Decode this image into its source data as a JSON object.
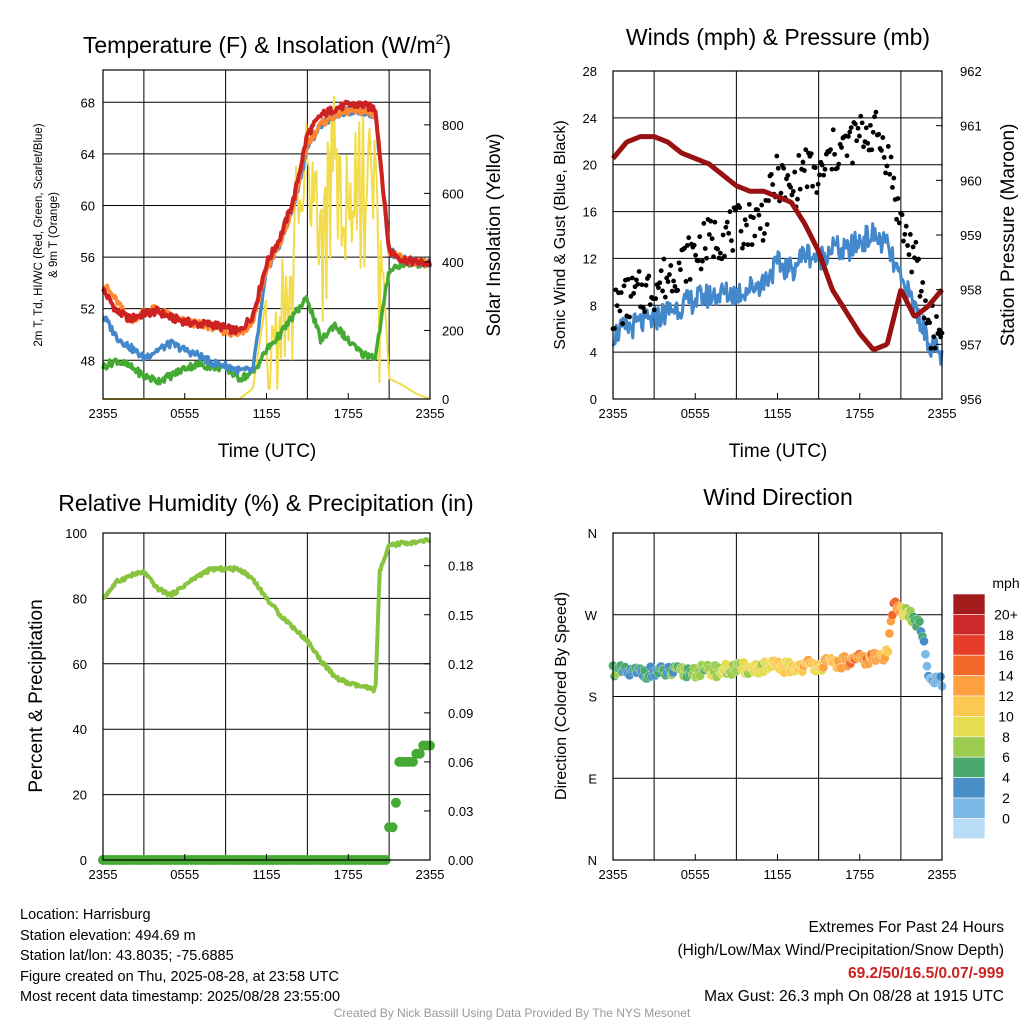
{
  "chart_data": [
    {
      "type": "line",
      "title": "Temperature (F) & Insolation (W/m2)",
      "title_main": "Temperature (F) & Insolation (W/m",
      "title_sup": "2",
      "title_end": ")",
      "xlabel": "Time (UTC)",
      "ylabel_lines": [
        "2m T, Td, HI/WC (Red, Green, Scarlet/Blue)",
        "& 9m T (Orange)"
      ],
      "ylabel2": "Solar Insolation (Yellow)",
      "x_ticks": [
        "2355",
        "0555",
        "1155",
        "1755",
        "2355"
      ],
      "y_ticks": [
        48,
        52,
        56,
        60,
        64,
        68
      ],
      "y2_ticks": [
        0,
        200,
        400,
        600,
        800
      ],
      "ylim": [
        45,
        70.5
      ],
      "y2lim": [
        0,
        960
      ],
      "colors": {
        "temp": "#cc2222",
        "dewpoint": "#44aa33",
        "windchill": "#4488cc",
        "temp9m": "#ff8833",
        "insolation": "#f2dc4a"
      },
      "series": [
        {
          "name": "2m T",
          "color": "#cc2222",
          "x": [
            0,
            1,
            2,
            3,
            4,
            5,
            6,
            7,
            8,
            9,
            10,
            11,
            12,
            13,
            14,
            15,
            16,
            17,
            18,
            19,
            20,
            21,
            22,
            23,
            24
          ],
          "values": [
            53.5,
            51.8,
            51.2,
            51.6,
            51.8,
            51.3,
            51.0,
            50.8,
            50.8,
            50.5,
            50.2,
            51.5,
            55.5,
            57.5,
            60.5,
            65.5,
            67.0,
            67.5,
            67.8,
            67.8,
            67.5,
            56.5,
            55.8,
            55.6,
            55.5
          ]
        },
        {
          "name": "9m T",
          "color": "#ff8833",
          "x": [
            0,
            1,
            2,
            3,
            4,
            5,
            6,
            7,
            8,
            9,
            10,
            11,
            12,
            13,
            14,
            15,
            16,
            17,
            18,
            19,
            20,
            21,
            22,
            23,
            24
          ],
          "values": [
            54.0,
            52.6,
            51.0,
            51.8,
            52.0,
            51.4,
            51.0,
            50.8,
            50.6,
            50.2,
            50.0,
            51.0,
            55.0,
            57.0,
            60.0,
            64.8,
            66.3,
            67.0,
            67.3,
            67.3,
            67.0,
            56.5,
            55.8,
            55.6,
            55.5
          ]
        },
        {
          "name": "HI/WC",
          "color": "#4488cc",
          "x": [
            0,
            1,
            2,
            3,
            4,
            5,
            6,
            7,
            8,
            9,
            10,
            11,
            12,
            13,
            14,
            15,
            16,
            17,
            18,
            19,
            20,
            21,
            22,
            23,
            24
          ],
          "values": [
            51.5,
            49.8,
            49.0,
            48.2,
            48.8,
            49.3,
            48.8,
            48.4,
            47.8,
            47.6,
            47.2,
            47.2,
            55.0,
            57.0,
            60.0,
            64.5,
            66.3,
            67.0,
            67.3,
            67.3,
            67.0,
            56.5,
            55.8,
            55.6,
            55.5
          ]
        },
        {
          "name": "Td",
          "color": "#44aa33",
          "x": [
            0,
            1,
            2,
            3,
            4,
            5,
            6,
            7,
            8,
            9,
            10,
            11,
            12,
            13,
            14,
            15,
            16,
            17,
            18,
            19,
            20,
            21,
            22,
            23,
            24
          ],
          "values": [
            47.5,
            48.0,
            47.5,
            46.8,
            46.4,
            46.8,
            47.4,
            47.7,
            47.5,
            47.4,
            46.6,
            47.0,
            48.8,
            50.0,
            51.5,
            52.8,
            49.5,
            50.8,
            49.5,
            48.5,
            48.3,
            55.0,
            55.5,
            55.5,
            55.5
          ]
        },
        {
          "name": "Solar Insolation",
          "color": "#f2dc4a",
          "x": [
            0,
            1,
            2,
            3,
            4,
            5,
            6,
            7,
            8,
            9,
            10,
            11,
            12,
            13,
            14,
            15,
            16,
            17,
            18,
            19,
            20,
            21,
            22,
            23,
            24
          ],
          "values": [
            0,
            0,
            0,
            0,
            0,
            0,
            0,
            0,
            0,
            0,
            0,
            30,
            300,
            480,
            650,
            880,
            650,
            900,
            700,
            850,
            780,
            60,
            40,
            15,
            0
          ]
        }
      ]
    },
    {
      "type": "line",
      "title": "Winds (mph) & Pressure (mb)",
      "xlabel": "Time (UTC)",
      "ylabel": "Sonic Wind & Gust (Blue, Black)",
      "ylabel2": "Station Pressure (Maroon)",
      "x_ticks": [
        "2355",
        "0555",
        "1155",
        "1755",
        "2355"
      ],
      "y_ticks": [
        0,
        4,
        8,
        12,
        16,
        20,
        24,
        28
      ],
      "y2_ticks": [
        956,
        957,
        958,
        959,
        960,
        961,
        962
      ],
      "ylim": [
        0,
        28
      ],
      "y2lim": [
        956,
        962
      ],
      "colors": {
        "wind": "#4488cc",
        "gust": "#000000",
        "pressure": "#991111"
      },
      "series": [
        {
          "name": "Sonic Wind",
          "color": "#4488cc",
          "x": [
            0,
            1,
            2,
            3,
            4,
            5,
            6,
            7,
            8,
            9,
            10,
            11,
            12,
            13,
            14,
            15,
            16,
            17,
            18,
            19,
            20,
            21,
            22,
            23,
            24
          ],
          "values": [
            5.5,
            6.0,
            6.5,
            6.8,
            7.5,
            8.0,
            8.5,
            8.8,
            9.0,
            9.0,
            9.5,
            10.0,
            11.5,
            11.0,
            12.5,
            12.0,
            13.0,
            12.5,
            13.5,
            14.0,
            13.0,
            10.0,
            8.0,
            5.0,
            3.5
          ]
        },
        {
          "name": "Gust",
          "color": "#000000",
          "x": [
            0,
            1,
            2,
            3,
            4,
            5,
            6,
            7,
            8,
            9,
            10,
            11,
            12,
            13,
            14,
            15,
            16,
            17,
            18,
            19,
            20,
            21,
            22,
            23,
            24
          ],
          "values": [
            7.5,
            8.5,
            9.0,
            9.5,
            10.5,
            11.5,
            12.5,
            13.5,
            14.0,
            14.5,
            15.0,
            15.5,
            19.0,
            17.5,
            20.0,
            18.5,
            21.0,
            21.5,
            22.5,
            23.0,
            21.0,
            15.0,
            12.0,
            6.5,
            5.5
          ]
        },
        {
          "name": "Station Pressure",
          "color": "#991111",
          "x": [
            0,
            1,
            2,
            3,
            4,
            5,
            6,
            7,
            8,
            9,
            10,
            11,
            12,
            13,
            14,
            15,
            16,
            17,
            18,
            19,
            20,
            21,
            22,
            23,
            24
          ],
          "values": [
            960.4,
            960.7,
            960.8,
            960.8,
            960.7,
            960.5,
            960.4,
            960.3,
            960.1,
            959.9,
            959.8,
            959.8,
            959.7,
            959.6,
            959.2,
            958.7,
            958.0,
            957.6,
            957.2,
            956.9,
            957.0,
            958.0,
            957.5,
            957.7,
            958.0
          ]
        }
      ]
    },
    {
      "type": "line",
      "title": "Relative Humidity (%) & Precipitation (in)",
      "xlabel": "",
      "ylabel": "Percent & Precipitation",
      "x_ticks": [
        "2355",
        "0555",
        "1155",
        "1755",
        "2355"
      ],
      "y_ticks": [
        0,
        20,
        40,
        60,
        80,
        100
      ],
      "y2_ticks": [
        "0.00",
        "0.03",
        "0.06",
        "0.09",
        "0.12",
        "0.15",
        "0.18"
      ],
      "ylim": [
        0,
        100
      ],
      "y2lim": [
        0,
        0.2
      ],
      "colors": {
        "rh": "#88c440",
        "precip": "#44aa33"
      },
      "series": [
        {
          "name": "Relative Humidity",
          "color": "#88c440",
          "x": [
            0,
            1,
            2,
            3,
            4,
            5,
            6,
            7,
            8,
            9,
            10,
            11,
            12,
            13,
            14,
            15,
            16,
            17,
            18,
            19,
            20,
            20.3,
            21,
            22,
            23,
            24
          ],
          "values": [
            80,
            85,
            87,
            88,
            83,
            81,
            84,
            87,
            89,
            89,
            89,
            86,
            80,
            75,
            71,
            67,
            61,
            56,
            54,
            53,
            52,
            88,
            96,
            97,
            97,
            98
          ]
        },
        {
          "name": "Precipitation",
          "color": "#44aa33",
          "x": [
            0,
            4,
            8,
            12,
            16,
            19,
            20.5,
            21,
            21.3,
            21.6,
            22,
            23,
            24
          ],
          "values": [
            0,
            0,
            0,
            0,
            0,
            0,
            0,
            0.02,
            0.035,
            0.06,
            0.06,
            0.065,
            0.07
          ]
        }
      ]
    },
    {
      "type": "scatter",
      "title": "Wind Direction",
      "xlabel": "",
      "ylabel": "Direction (Colored By Speed)",
      "x_ticks": [
        "2355",
        "0555",
        "1155",
        "1755",
        "2355"
      ],
      "y_ticks": [
        "N",
        "E",
        "S",
        "W",
        "N"
      ],
      "ylim": [
        0,
        360
      ],
      "colorbar_unit": "mph",
      "colorbar_labels": [
        "20+",
        "18",
        "16",
        "14",
        "12",
        "10",
        "8",
        "6",
        "4",
        "2",
        "0"
      ],
      "colorbar_colors": [
        "#a31b1b",
        "#cc2a2a",
        "#e63c2a",
        "#f2682a",
        "#fca040",
        "#fbc850",
        "#e6dc50",
        "#9ccc50",
        "#4aaa6e",
        "#4a8ec8",
        "#7ab8e6",
        "#b8ddf5"
      ],
      "series": [
        {
          "name": "Direction",
          "x": [
            0,
            1,
            2,
            3,
            4,
            5,
            6,
            7,
            8,
            9,
            10,
            11,
            12,
            13,
            14,
            15,
            16,
            17,
            18,
            19,
            20,
            20.5,
            21,
            22,
            22.5,
            23,
            24
          ],
          "values": [
            210,
            205,
            207,
            206,
            207,
            206,
            208,
            208,
            209,
            210,
            211,
            212,
            213,
            212,
            214,
            215,
            216,
            218,
            220,
            222,
            225,
            290,
            275,
            265,
            255,
            200,
            195
          ],
          "speed": [
            6,
            6,
            5,
            5,
            6,
            7,
            7,
            8,
            9,
            9,
            10,
            10,
            11,
            11,
            12,
            12,
            13,
            14,
            15,
            14,
            13,
            16,
            12,
            6,
            4,
            3,
            3
          ]
        }
      ]
    }
  ],
  "info": {
    "location": "Location: Harrisburg",
    "elevation": "Station elevation: 494.69 m",
    "latlon": "Station lat/lon: 43.8035; -75.6885",
    "created": "Figure created on Thu, 2025-08-28, at 23:58 UTC",
    "recent": "Most recent data timestamp: 2025/08/28 23:55:00"
  },
  "extremes": {
    "heading": "Extremes For Past 24 Hours",
    "subheading": "(High/Low/Max Wind/Precipitation/Snow Depth)",
    "values": "69.2/50/16.5/0.07/-999",
    "max_gust": "Max Gust: 26.3 mph On 08/28 at 1915 UTC"
  },
  "credit": "Created By Nick Bassill Using Data Provided By The NYS Mesonet"
}
